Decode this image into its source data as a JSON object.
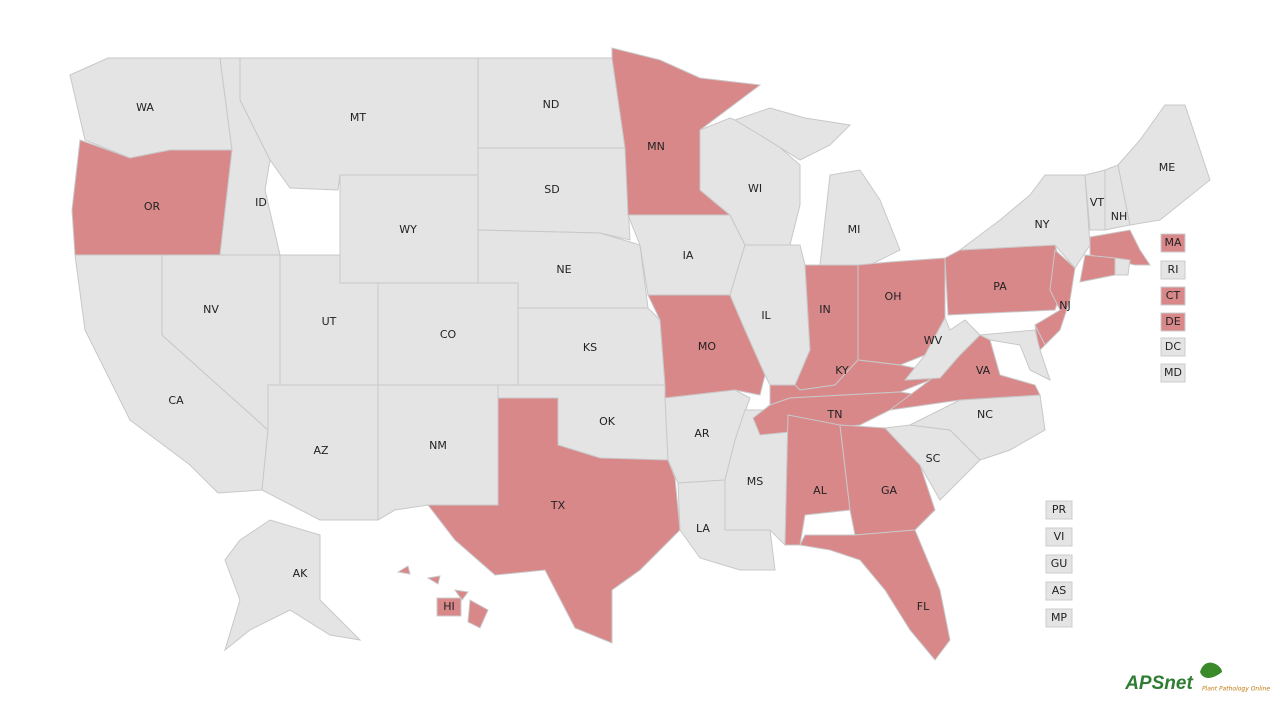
{
  "states": [
    {
      "label": "WA",
      "color": "#e4e4e4"
    },
    {
      "label": "OR",
      "color": "#d9888a"
    },
    {
      "label": "ID",
      "color": "#e4e4e4"
    },
    {
      "label": "MT",
      "color": "#e4e4e4"
    },
    {
      "label": "WY",
      "color": "#e4e4e4"
    },
    {
      "label": "ND",
      "color": "#e4e4e4"
    },
    {
      "label": "SD",
      "color": "#e4e4e4"
    },
    {
      "label": "NE",
      "color": "#e4e4e4"
    },
    {
      "label": "CA",
      "color": "#e4e4e4"
    },
    {
      "label": "NV",
      "color": "#e4e4e4"
    },
    {
      "label": "UT",
      "color": "#e4e4e4"
    },
    {
      "label": "CO",
      "color": "#e4e4e4"
    },
    {
      "label": "AZ",
      "color": "#e4e4e4"
    },
    {
      "label": "NM",
      "color": "#e4e4e4"
    },
    {
      "label": "KS",
      "color": "#e4e4e4"
    },
    {
      "label": "OK",
      "color": "#e4e4e4"
    },
    {
      "label": "TX",
      "color": "#d9888a"
    },
    {
      "label": "MN",
      "color": "#d9888a"
    },
    {
      "label": "IA",
      "color": "#e4e4e4"
    },
    {
      "label": "MO",
      "color": "#d9888a"
    },
    {
      "label": "AR",
      "color": "#e4e4e4"
    },
    {
      "label": "LA",
      "color": "#e4e4e4"
    },
    {
      "label": "MS",
      "color": "#e4e4e4"
    },
    {
      "label": "WI",
      "color": "#e4e4e4"
    },
    {
      "label": "IL",
      "color": "#e4e4e4"
    },
    {
      "label": "MI",
      "color": "#e4e4e4"
    },
    {
      "label": "IN",
      "color": "#d9888a"
    },
    {
      "label": "OH",
      "color": "#d9888a"
    },
    {
      "label": "KY",
      "color": "#d9888a"
    },
    {
      "label": "TN",
      "color": "#d9888a"
    },
    {
      "label": "AL",
      "color": "#d9888a"
    },
    {
      "label": "GA",
      "color": "#d9888a"
    },
    {
      "label": "FL",
      "color": "#d9888a"
    },
    {
      "label": "SC",
      "color": "#e4e4e4"
    },
    {
      "label": "NC",
      "color": "#e4e4e4"
    },
    {
      "label": "VA",
      "color": "#d9888a"
    },
    {
      "label": "WV",
      "color": "#e4e4e4"
    },
    {
      "label": "PA",
      "color": "#d9888a"
    },
    {
      "label": "NY",
      "color": "#e4e4e4"
    },
    {
      "label": "NJ",
      "color": "#d9888a"
    },
    {
      "label": "VT",
      "color": "#e4e4e4"
    },
    {
      "label": "NH",
      "color": "#e4e4e4"
    },
    {
      "label": "ME",
      "color": "#e4e4e4"
    },
    {
      "label": "AK",
      "color": "#e4e4e4"
    },
    {
      "label": "HI",
      "color": "#d9888a"
    },
    {
      "label": "MA",
      "color": "#d9888a"
    },
    {
      "label": "RI",
      "color": "#e4e4e4"
    },
    {
      "label": "CT",
      "color": "#d9888a"
    },
    {
      "label": "DE",
      "color": "#d9888a"
    },
    {
      "label": "DC",
      "color": "#e4e4e4"
    },
    {
      "label": "MD",
      "color": "#e4e4e4"
    }
  ],
  "territories": [
    {
      "label": "PR",
      "color": "#e4e4e4"
    },
    {
      "label": "VI",
      "color": "#e4e4e4"
    },
    {
      "label": "GU",
      "color": "#e4e4e4"
    },
    {
      "label": "AS",
      "color": "#e4e4e4"
    },
    {
      "label": "MP",
      "color": "#e4e4e4"
    }
  ],
  "logo": {
    "name": "APSnet",
    "tagline": "Plant Pathology Online"
  }
}
